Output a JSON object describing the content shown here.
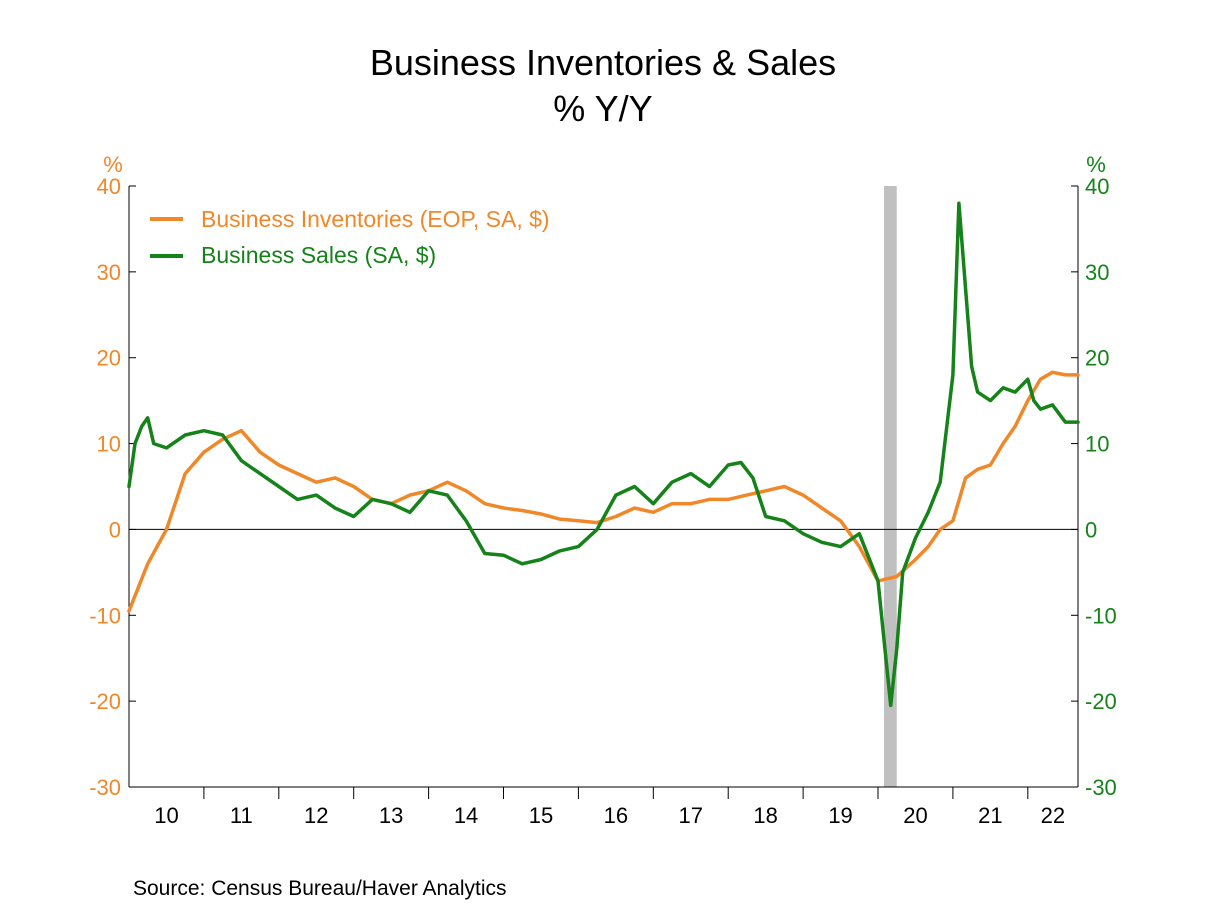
{
  "chart_data": {
    "type": "line",
    "title": "Business Inventories & Sales",
    "subtitle": "% Y/Y",
    "source": "Source:  Census Bureau/Haver Analytics",
    "x_axis": {
      "labels": [
        "10",
        "11",
        "12",
        "13",
        "14",
        "15",
        "16",
        "17",
        "18",
        "19",
        "20",
        "21",
        "22"
      ],
      "range": [
        2010.0,
        2022.67
      ]
    },
    "left_axis": {
      "unit": "%",
      "range": [
        -30,
        40
      ],
      "ticks": [
        -30,
        -20,
        -10,
        0,
        10,
        20,
        30,
        40
      ]
    },
    "right_axis": {
      "unit": "%",
      "range": [
        -30,
        40
      ],
      "ticks": [
        -30,
        -20,
        -10,
        0,
        10,
        20,
        30,
        40
      ]
    },
    "recession_shading": {
      "start": 2020.08,
      "end": 2020.25,
      "color": "#c0c0c0"
    },
    "colors": {
      "inventories": "#f0882a",
      "sales": "#15821a",
      "axis": "#000000"
    },
    "series": [
      {
        "name": "Business Inventories (EOP, SA, $)",
        "color": "#f0882a",
        "x": [
          2010.0,
          2010.25,
          2010.5,
          2010.75,
          2011.0,
          2011.25,
          2011.5,
          2011.75,
          2012.0,
          2012.25,
          2012.5,
          2012.75,
          2013.0,
          2013.25,
          2013.5,
          2013.75,
          2014.0,
          2014.25,
          2014.5,
          2014.75,
          2015.0,
          2015.25,
          2015.5,
          2015.75,
          2016.0,
          2016.25,
          2016.5,
          2016.75,
          2017.0,
          2017.25,
          2017.5,
          2017.75,
          2018.0,
          2018.25,
          2018.5,
          2018.75,
          2019.0,
          2019.25,
          2019.5,
          2019.75,
          2020.0,
          2020.25,
          2020.5,
          2020.67,
          2020.83,
          2021.0,
          2021.17,
          2021.33,
          2021.5,
          2021.67,
          2021.83,
          2022.0,
          2022.17,
          2022.33,
          2022.5,
          2022.67
        ],
        "y": [
          -9.5,
          -4.0,
          0,
          6.5,
          9.0,
          10.5,
          11.5,
          9.0,
          7.5,
          6.5,
          5.5,
          6.0,
          5.0,
          3.5,
          3.0,
          4.0,
          4.5,
          5.5,
          4.5,
          3.0,
          2.5,
          2.2,
          1.8,
          1.2,
          1.0,
          0.8,
          1.5,
          2.5,
          2.0,
          3.0,
          3.0,
          3.5,
          3.5,
          4.0,
          4.5,
          5.0,
          4.0,
          2.5,
          1.0,
          -2.0,
          -6.0,
          -5.5,
          -3.5,
          -2.0,
          0,
          1.0,
          6.0,
          7.0,
          7.5,
          10.0,
          12.0,
          15.0,
          17.5,
          18.3,
          18.0,
          18.0
        ]
      },
      {
        "name": "Business Sales (SA, $)",
        "color": "#15821a",
        "x": [
          2010.0,
          2010.08,
          2010.17,
          2010.25,
          2010.33,
          2010.5,
          2010.75,
          2011.0,
          2011.25,
          2011.5,
          2011.75,
          2012.0,
          2012.25,
          2012.5,
          2012.75,
          2013.0,
          2013.25,
          2013.5,
          2013.75,
          2014.0,
          2014.25,
          2014.5,
          2014.75,
          2015.0,
          2015.25,
          2015.5,
          2015.75,
          2016.0,
          2016.25,
          2016.5,
          2016.75,
          2017.0,
          2017.25,
          2017.5,
          2017.75,
          2018.0,
          2018.17,
          2018.33,
          2018.5,
          2018.75,
          2019.0,
          2019.25,
          2019.5,
          2019.75,
          2020.0,
          2020.17,
          2020.25,
          2020.33,
          2020.5,
          2020.67,
          2020.83,
          2021.0,
          2021.08,
          2021.17,
          2021.25,
          2021.33,
          2021.5,
          2021.67,
          2021.83,
          2022.0,
          2022.08,
          2022.17,
          2022.33,
          2022.5,
          2022.67
        ],
        "y": [
          5.0,
          10.0,
          12.0,
          13.0,
          10.0,
          9.5,
          11.0,
          11.5,
          11.0,
          8.0,
          6.5,
          5.0,
          3.5,
          4.0,
          2.5,
          1.5,
          3.5,
          3.0,
          2.0,
          4.5,
          4.0,
          1.0,
          -2.8,
          -3.0,
          -4.0,
          -3.5,
          -2.5,
          -2.0,
          0.0,
          4.0,
          5.0,
          3.0,
          5.5,
          6.5,
          5.0,
          7.5,
          7.8,
          6.0,
          1.5,
          1.0,
          -0.5,
          -1.5,
          -2.0,
          -0.5,
          -6.0,
          -20.5,
          -14.0,
          -5.0,
          -1.0,
          2.0,
          5.5,
          18.0,
          38.0,
          28.0,
          19.0,
          16.0,
          15.0,
          16.5,
          16.0,
          17.5,
          15.0,
          14.0,
          14.5,
          12.5,
          12.5
        ]
      }
    ]
  }
}
